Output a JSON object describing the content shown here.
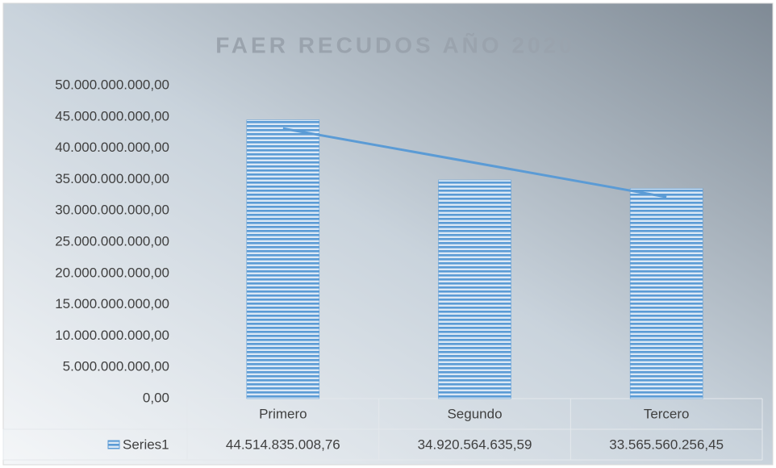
{
  "chart_data": {
    "type": "bar",
    "title": "FAER RECUDOS AÑO 2020",
    "categories": [
      "Primero",
      "Segundo",
      "Tercero"
    ],
    "series": [
      {
        "name": "Series1",
        "color": "#5b9bd5",
        "values": [
          44514835008.76,
          34920564635.59,
          33565560256.45
        ],
        "value_labels": [
          "44.514.835.008,76",
          "34.920.564.635,59",
          "33.565.560.256,45"
        ]
      }
    ],
    "ylim": [
      0,
      50000000000
    ],
    "yticks": [
      {
        "value": 0,
        "label": "0,00"
      },
      {
        "value": 5000000000,
        "label": "5.000.000.000,00"
      },
      {
        "value": 10000000000,
        "label": "10.000.000.000,00"
      },
      {
        "value": 15000000000,
        "label": "15.000.000.000,00"
      },
      {
        "value": 20000000000,
        "label": "20.000.000.000,00"
      },
      {
        "value": 25000000000,
        "label": "25.000.000.000,00"
      },
      {
        "value": 30000000000,
        "label": "30.000.000.000,00"
      },
      {
        "value": 35000000000,
        "label": "35.000.000.000,00"
      },
      {
        "value": 40000000000,
        "label": "40.000.000.000,00"
      },
      {
        "value": 45000000000,
        "label": "45.000.000.000,00"
      },
      {
        "value": 50000000000,
        "label": "50.000.000.000,00"
      }
    ],
    "grid": false,
    "trendline": true,
    "data_table": true
  }
}
